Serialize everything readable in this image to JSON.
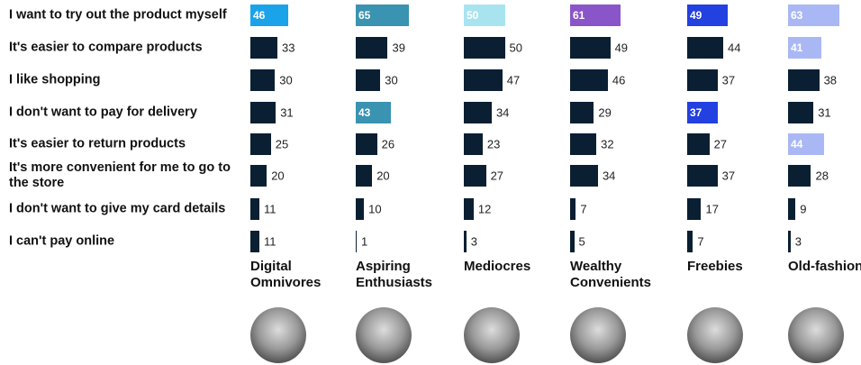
{
  "chart_data": {
    "type": "bar",
    "orientation": "horizontal",
    "categories": [
      "I want to try out the product myself",
      "It's easier to compare products",
      "I like shopping",
      "I don't want to pay for delivery",
      "It's easier to return products",
      "It's more convenient for me to go to the store",
      "I don't want to give my card details",
      "I can't pay online"
    ],
    "series": [
      {
        "name": "Digital Omnivores",
        "color": "#0b1f33",
        "values": [
          46,
          33,
          30,
          31,
          25,
          20,
          11,
          11
        ],
        "colors": [
          "#1aa3e8",
          "#0b1f33",
          "#0b1f33",
          "#0b1f33",
          "#0b1f33",
          "#0b1f33",
          "#0b1f33",
          "#0b1f33"
        ]
      },
      {
        "name": "Aspiring Enthusiasts",
        "color": "#0b1f33",
        "values": [
          65,
          39,
          30,
          43,
          26,
          20,
          10,
          1
        ],
        "colors": [
          "#3a93b0",
          "#0b1f33",
          "#0b1f33",
          "#3a93b0",
          "#0b1f33",
          "#0b1f33",
          "#0b1f33",
          "#0b1f33"
        ]
      },
      {
        "name": "Mediocres",
        "color": "#0b1f33",
        "values": [
          50,
          50,
          47,
          34,
          23,
          27,
          12,
          3
        ],
        "colors": [
          "#a8e4f0",
          "#0b1f33",
          "#0b1f33",
          "#0b1f33",
          "#0b1f33",
          "#0b1f33",
          "#0b1f33",
          "#0b1f33"
        ]
      },
      {
        "name": "Wealthy Convenients",
        "color": "#0b1f33",
        "values": [
          61,
          49,
          46,
          29,
          32,
          34,
          7,
          5
        ],
        "colors": [
          "#8a55c8",
          "#0b1f33",
          "#0b1f33",
          "#0b1f33",
          "#0b1f33",
          "#0b1f33",
          "#0b1f33",
          "#0b1f33"
        ]
      },
      {
        "name": "Freebies",
        "color": "#0b1f33",
        "values": [
          49,
          44,
          37,
          37,
          27,
          37,
          17,
          7
        ],
        "colors": [
          "#2340e0",
          "#0b1f33",
          "#0b1f33",
          "#2340e0",
          "#0b1f33",
          "#0b1f33",
          "#0b1f33",
          "#0b1f33"
        ]
      },
      {
        "name": "Old-fashioneds",
        "color": "#0b1f33",
        "values": [
          63,
          41,
          38,
          31,
          44,
          28,
          9,
          3
        ],
        "colors": [
          "#a9b8f5",
          "#a9b8f5",
          "#0b1f33",
          "#0b1f33",
          "#a9b8f5",
          "#0b1f33",
          "#0b1f33",
          "#0b1f33"
        ]
      }
    ]
  }
}
